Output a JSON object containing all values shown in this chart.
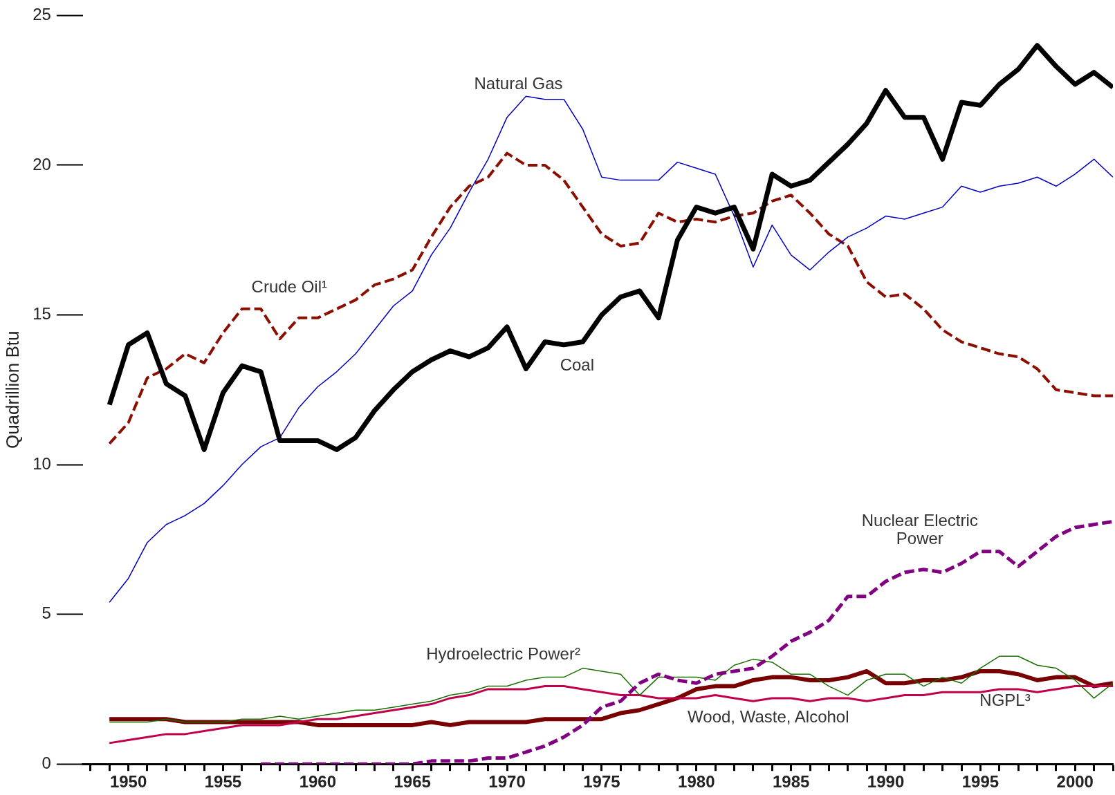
{
  "chart_data": {
    "type": "line",
    "ylabel": "Quadrillion Btu",
    "xlim": [
      1947.6,
      2002
    ],
    "ylim": [
      0,
      25
    ],
    "yticks": [
      0,
      5,
      10,
      15,
      20,
      25
    ],
    "xticks": [
      {
        "value": 1948,
        "label": null
      },
      {
        "value": 1949,
        "label": null
      },
      1950,
      {
        "value": 1951,
        "label": null
      },
      {
        "value": 1952,
        "label": null
      },
      {
        "value": 1953,
        "label": null
      },
      {
        "value": 1954,
        "label": null
      },
      1955,
      {
        "value": 1956,
        "label": null
      },
      {
        "value": 1957,
        "label": null
      },
      {
        "value": 1958,
        "label": null
      },
      {
        "value": 1959,
        "label": null
      },
      1960,
      {
        "value": 1961,
        "label": null
      },
      {
        "value": 1962,
        "label": null
      },
      {
        "value": 1963,
        "label": null
      },
      {
        "value": 1964,
        "label": null
      },
      1965,
      {
        "value": 1966,
        "label": null
      },
      {
        "value": 1967,
        "label": null
      },
      {
        "value": 1968,
        "label": null
      },
      {
        "value": 1969,
        "label": null
      },
      1970,
      {
        "value": 1971,
        "label": null
      },
      {
        "value": 1972,
        "label": null
      },
      {
        "value": 1973,
        "label": null
      },
      {
        "value": 1974,
        "label": null
      },
      1975,
      {
        "value": 1976,
        "label": null
      },
      {
        "value": 1977,
        "label": null
      },
      {
        "value": 1978,
        "label": null
      },
      {
        "value": 1979,
        "label": null
      },
      1980,
      {
        "value": 1981,
        "label": null
      },
      {
        "value": 1982,
        "label": null
      },
      {
        "value": 1983,
        "label": null
      },
      {
        "value": 1984,
        "label": null
      },
      1985,
      {
        "value": 1986,
        "label": null
      },
      {
        "value": 1987,
        "label": null
      },
      {
        "value": 1988,
        "label": null
      },
      {
        "value": 1989,
        "label": null
      },
      1990,
      {
        "value": 1991,
        "label": null
      },
      {
        "value": 1992,
        "label": null
      },
      {
        "value": 1993,
        "label": null
      },
      {
        "value": 1994,
        "label": null
      },
      1995,
      {
        "value": 1996,
        "label": null
      },
      {
        "value": 1997,
        "label": null
      },
      {
        "value": 1998,
        "label": null
      },
      {
        "value": 1999,
        "label": null
      },
      2000,
      {
        "value": 2001,
        "label": null
      },
      {
        "value": 2002,
        "label": null
      }
    ],
    "x": [
      1949,
      1950,
      1951,
      1952,
      1953,
      1954,
      1955,
      1956,
      1957,
      1958,
      1959,
      1960,
      1961,
      1962,
      1963,
      1964,
      1965,
      1966,
      1967,
      1968,
      1969,
      1970,
      1971,
      1972,
      1973,
      1974,
      1975,
      1976,
      1977,
      1978,
      1979,
      1980,
      1981,
      1982,
      1983,
      1984,
      1985,
      1986,
      1987,
      1988,
      1989,
      1990,
      1991,
      1992,
      1993,
      1994,
      1995,
      1996,
      1997,
      1998,
      1999,
      2000,
      2001,
      2002
    ],
    "grid": false,
    "legend": false,
    "marker": "none",
    "series": [
      {
        "name": "Coal",
        "color": "#000000",
        "line_style": "solid",
        "values": [
          12.0,
          14.0,
          14.4,
          12.7,
          12.3,
          10.5,
          12.4,
          13.3,
          13.1,
          10.8,
          10.8,
          10.8,
          10.5,
          10.9,
          11.8,
          12.5,
          13.1,
          13.5,
          13.8,
          13.6,
          13.9,
          14.6,
          13.2,
          14.1,
          14.0,
          14.1,
          15.0,
          15.6,
          15.8,
          14.9,
          17.5,
          18.6,
          18.4,
          18.6,
          17.2,
          19.7,
          19.3,
          19.5,
          20.1,
          20.7,
          21.4,
          22.5,
          21.6,
          21.6,
          20.2,
          22.1,
          22.0,
          22.7,
          23.2,
          24.0,
          23.3,
          22.7,
          23.1,
          22.6
        ]
      },
      {
        "name": "Natural Gas",
        "color": "#0000c0",
        "line_style": "solid",
        "values": [
          5.4,
          6.2,
          7.4,
          8.0,
          8.3,
          8.7,
          9.3,
          10.0,
          10.6,
          10.9,
          11.9,
          12.6,
          13.1,
          13.7,
          14.5,
          15.3,
          15.8,
          17.0,
          17.9,
          19.1,
          20.2,
          21.6,
          22.3,
          22.2,
          22.2,
          21.2,
          19.6,
          19.5,
          19.5,
          19.5,
          20.1,
          19.9,
          19.7,
          18.3,
          16.6,
          18.0,
          17.0,
          16.5,
          17.1,
          17.6,
          17.9,
          18.3,
          18.2,
          18.4,
          18.6,
          19.3,
          19.1,
          19.3,
          19.4,
          19.6,
          19.3,
          19.7,
          20.2,
          19.6
        ]
      },
      {
        "name": "Crude Oil¹",
        "color": "#8b0f00",
        "line_style": "dashed",
        "values": [
          10.7,
          11.4,
          12.9,
          13.2,
          13.7,
          13.4,
          14.4,
          15.2,
          15.2,
          14.2,
          14.9,
          14.9,
          15.2,
          15.5,
          16.0,
          16.2,
          16.5,
          17.6,
          18.6,
          19.3,
          19.6,
          20.4,
          20.0,
          20.0,
          19.5,
          18.6,
          17.7,
          17.3,
          17.4,
          18.4,
          18.1,
          18.2,
          18.1,
          18.3,
          18.4,
          18.8,
          19.0,
          18.4,
          17.7,
          17.3,
          16.1,
          15.6,
          15.7,
          15.2,
          14.5,
          14.1,
          13.9,
          13.7,
          13.6,
          13.2,
          12.5,
          12.4,
          12.3,
          12.3
        ]
      },
      {
        "name": "Nuclear Electric Power",
        "color": "#800080",
        "line_style": "dashed",
        "values": [
          null,
          null,
          null,
          null,
          null,
          null,
          null,
          null,
          0.0,
          0.0,
          0.0,
          0.0,
          0.0,
          0.0,
          0.0,
          0.0,
          0.0,
          0.1,
          0.1,
          0.1,
          0.2,
          0.2,
          0.4,
          0.6,
          0.9,
          1.3,
          1.9,
          2.1,
          2.7,
          3.0,
          2.8,
          2.7,
          3.0,
          3.1,
          3.2,
          3.6,
          4.1,
          4.4,
          4.8,
          5.6,
          5.6,
          6.1,
          6.4,
          6.5,
          6.4,
          6.7,
          7.1,
          7.1,
          6.6,
          7.1,
          7.6,
          7.9,
          8.0,
          8.1
        ]
      },
      {
        "name": "Hydroelectric Power²",
        "color": "#1a6e00",
        "line_style": "solid",
        "values": [
          1.4,
          1.4,
          1.4,
          1.5,
          1.4,
          1.4,
          1.4,
          1.5,
          1.5,
          1.6,
          1.5,
          1.6,
          1.7,
          1.8,
          1.8,
          1.9,
          2.0,
          2.1,
          2.3,
          2.4,
          2.6,
          2.6,
          2.8,
          2.9,
          2.9,
          3.2,
          3.1,
          3.0,
          2.3,
          2.9,
          2.9,
          2.9,
          2.8,
          3.3,
          3.5,
          3.4,
          3.0,
          3.0,
          2.6,
          2.3,
          2.8,
          3.0,
          3.0,
          2.6,
          2.9,
          2.7,
          3.2,
          3.6,
          3.6,
          3.3,
          3.2,
          2.8,
          2.2,
          2.7
        ]
      },
      {
        "name": "NGPL³",
        "color": "#c0004a",
        "line_style": "solid",
        "values": [
          0.7,
          0.8,
          0.9,
          1.0,
          1.0,
          1.1,
          1.2,
          1.3,
          1.3,
          1.3,
          1.4,
          1.5,
          1.5,
          1.6,
          1.7,
          1.8,
          1.9,
          2.0,
          2.2,
          2.3,
          2.5,
          2.5,
          2.5,
          2.6,
          2.6,
          2.5,
          2.4,
          2.3,
          2.3,
          2.2,
          2.2,
          2.2,
          2.3,
          2.2,
          2.1,
          2.2,
          2.2,
          2.1,
          2.2,
          2.2,
          2.1,
          2.2,
          2.3,
          2.3,
          2.4,
          2.4,
          2.4,
          2.5,
          2.5,
          2.4,
          2.5,
          2.6,
          2.6,
          2.6
        ]
      },
      {
        "name": "Wood, Waste, Alcohol",
        "color": "#780000",
        "line_style": "solid",
        "values": [
          1.5,
          1.5,
          1.5,
          1.5,
          1.4,
          1.4,
          1.4,
          1.4,
          1.4,
          1.4,
          1.4,
          1.3,
          1.3,
          1.3,
          1.3,
          1.3,
          1.3,
          1.4,
          1.3,
          1.4,
          1.4,
          1.4,
          1.4,
          1.5,
          1.5,
          1.5,
          1.5,
          1.7,
          1.8,
          2.0,
          2.2,
          2.5,
          2.6,
          2.6,
          2.8,
          2.9,
          2.9,
          2.8,
          2.8,
          2.9,
          3.1,
          2.7,
          2.7,
          2.8,
          2.8,
          2.9,
          3.1,
          3.1,
          3.0,
          2.8,
          2.9,
          2.9,
          2.6,
          2.7
        ]
      }
    ]
  }
}
